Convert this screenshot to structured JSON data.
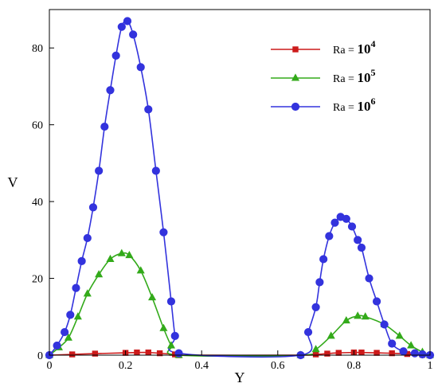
{
  "chart_data": {
    "type": "line",
    "title": "",
    "xlabel": "Y",
    "ylabel": "V",
    "xlim": [
      0,
      1
    ],
    "ylim": [
      0,
      90
    ],
    "xticks": [
      "0",
      "0.2",
      "0.4",
      "0.6",
      "0.8",
      "1"
    ],
    "yticks": [
      "0",
      "20",
      "40",
      "60",
      "80"
    ],
    "xtick_values": [
      0,
      0.2,
      0.4,
      0.6,
      0.8,
      1
    ],
    "ytick_values": [
      0,
      20,
      40,
      60,
      80
    ],
    "legend_position": "top-right",
    "grid": false,
    "series": [
      {
        "name": "Ra = 10^4",
        "label_prefix": "Ra = ",
        "label_base": "10",
        "label_exp": "4",
        "color": "#cc1a1a",
        "marker": "square",
        "x": [
          0,
          0.06,
          0.12,
          0.2,
          0.23,
          0.26,
          0.29,
          0.33,
          0.34,
          0.66,
          0.7,
          0.73,
          0.76,
          0.8,
          0.82,
          0.86,
          0.9,
          0.94,
          0.98,
          1
        ],
        "y": [
          0,
          0.2,
          0.4,
          0.6,
          0.7,
          0.7,
          0.5,
          0.2,
          0,
          0,
          0.2,
          0.4,
          0.6,
          0.7,
          0.7,
          0.6,
          0.5,
          0.3,
          0.1,
          0
        ]
      },
      {
        "name": "Ra = 10^5",
        "label_prefix": "Ra = ",
        "label_base": "10",
        "label_exp": "5",
        "color": "#33aa1a",
        "marker": "triangle",
        "x": [
          0,
          0.025,
          0.05,
          0.075,
          0.1,
          0.13,
          0.16,
          0.19,
          0.21,
          0.24,
          0.27,
          0.3,
          0.32,
          0.34,
          0.66,
          0.7,
          0.74,
          0.78,
          0.81,
          0.83,
          0.88,
          0.92,
          0.95,
          0.98,
          1
        ],
        "y": [
          0,
          2,
          4.5,
          10,
          16,
          21,
          25,
          26.5,
          26,
          22,
          15,
          7,
          2.5,
          0,
          0,
          1.5,
          5,
          9,
          10.2,
          10,
          8,
          5,
          2.5,
          0.8,
          0
        ]
      },
      {
        "name": "Ra = 10^6",
        "label_prefix": "Ra = ",
        "label_base": "10",
        "label_exp": "6",
        "color": "#3333dd",
        "marker": "circle",
        "x": [
          0,
          0.02,
          0.04,
          0.055,
          0.07,
          0.085,
          0.1,
          0.115,
          0.13,
          0.145,
          0.16,
          0.175,
          0.19,
          0.205,
          0.22,
          0.24,
          0.26,
          0.28,
          0.3,
          0.32,
          0.33,
          0.34,
          0.66,
          0.68,
          0.7,
          0.71,
          0.72,
          0.735,
          0.75,
          0.765,
          0.78,
          0.795,
          0.81,
          0.82,
          0.84,
          0.86,
          0.88,
          0.9,
          0.93,
          0.96,
          0.98,
          1
        ],
        "y": [
          0,
          2.5,
          6,
          10.5,
          17.5,
          24.5,
          30.5,
          38.5,
          48,
          59.5,
          69,
          78,
          85.5,
          87,
          83.5,
          75,
          64,
          48,
          32,
          14,
          5,
          0.5,
          0,
          6,
          12.5,
          19,
          25,
          31,
          34.5,
          36,
          35.5,
          33.5,
          30,
          28,
          20,
          14,
          8,
          3,
          1,
          0.5,
          0.2,
          0
        ]
      }
    ]
  }
}
